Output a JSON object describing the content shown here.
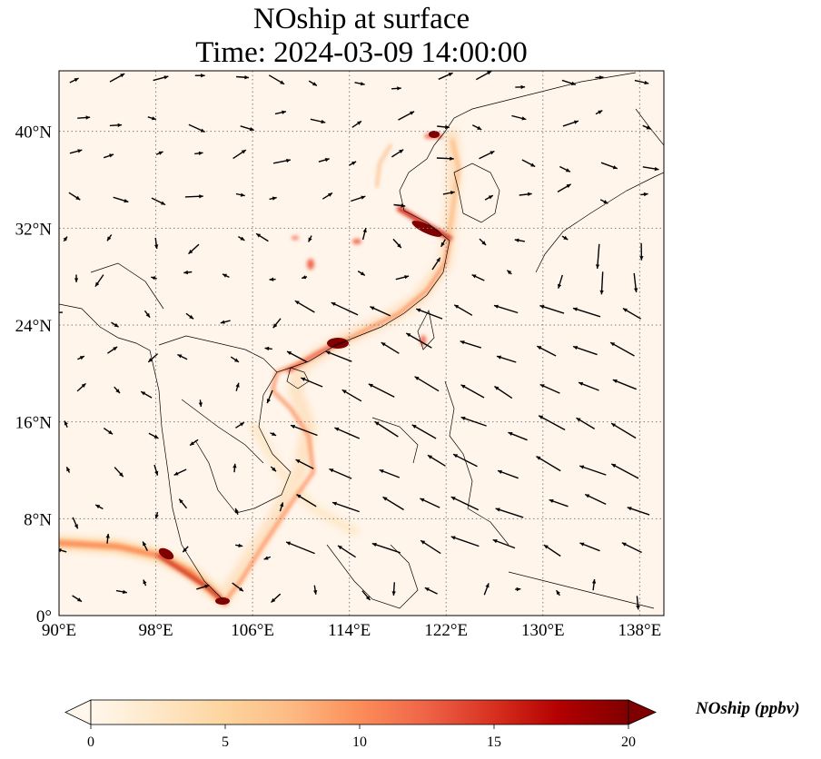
{
  "title": {
    "line1": "NOship at surface",
    "line2": "Time: 2024-03-09 14:00:00"
  },
  "map": {
    "lon_range": [
      90,
      140
    ],
    "lat_range": [
      0,
      45
    ],
    "lon_ticks": [
      "90°E",
      "98°E",
      "106°E",
      "114°E",
      "122°E",
      "130°E",
      "138°E"
    ],
    "lat_ticks": [
      "0°",
      "8°N",
      "16°N",
      "24°N",
      "32°N",
      "40°N"
    ],
    "background_color": "#fff5eb",
    "gridlines": "dotted gray"
  },
  "colorbar": {
    "label": "NOship (ppbv)",
    "min": 0,
    "max": 20,
    "ticks": [
      "0",
      "5",
      "10",
      "15",
      "20"
    ],
    "colormap": "OrRd",
    "extend": "both",
    "colors": [
      "#fff7ec",
      "#fee8c8",
      "#fdd49e",
      "#fdbb84",
      "#fc8d59",
      "#ef6548",
      "#d7301f",
      "#b30000",
      "#7f0000"
    ]
  }
}
